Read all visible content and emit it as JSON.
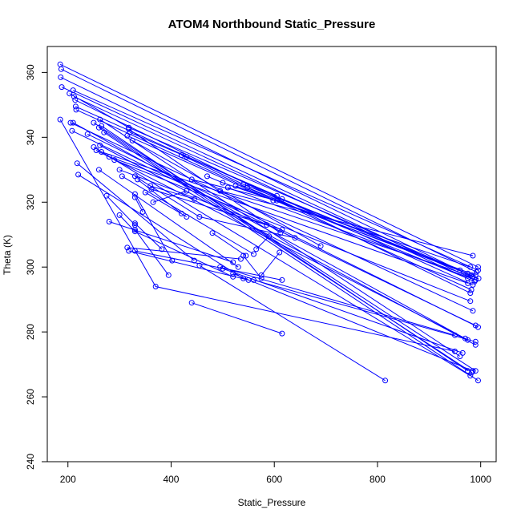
{
  "chart_data": {
    "type": "line",
    "title": "ATOM4 Northbound Static_Pressure",
    "xlabel": "Static_Pressure",
    "ylabel": "Theta (K)",
    "xlim": [
      160,
      1030
    ],
    "ylim": [
      240,
      368
    ],
    "xticks": [
      200,
      400,
      600,
      800,
      1000
    ],
    "yticks": [
      240,
      260,
      280,
      300,
      320,
      340,
      360
    ],
    "grid": false,
    "markers": "open-circle",
    "color": "#0000ff",
    "series": [
      {
        "x": [
          185,
          995
        ],
        "y": [
          362.5,
          300.0
        ]
      },
      {
        "x": [
          187,
          992
        ],
        "y": [
          361.0,
          298.5
        ]
      },
      {
        "x": [
          186,
          985
        ],
        "y": [
          358.5,
          297.0
        ]
      },
      {
        "x": [
          188,
          990
        ],
        "y": [
          355.5,
          296.0
        ]
      },
      {
        "x": [
          210,
          995
        ],
        "y": [
          354.5,
          299.0
        ]
      },
      {
        "x": [
          212,
          988
        ],
        "y": [
          352.5,
          295.5
        ]
      },
      {
        "x": [
          214,
          980
        ],
        "y": [
          351.5,
          292.0
        ]
      },
      {
        "x": [
          215,
          985
        ],
        "y": [
          349.5,
          294.5
        ]
      },
      {
        "x": [
          216,
          982
        ],
        "y": [
          348.5,
          293.0
        ]
      },
      {
        "x": [
          203,
          318,
          996
        ],
        "y": [
          353.5,
          343.0,
          296.5
        ]
      },
      {
        "x": [
          185,
          370,
          950
        ],
        "y": [
          345.5,
          294.0,
          274.0
        ]
      },
      {
        "x": [
          205,
          985
        ],
        "y": [
          344.5,
          286.5
        ]
      },
      {
        "x": [
          208,
          990
        ],
        "y": [
          342.0,
          282.0
        ]
      },
      {
        "x": [
          210,
          975
        ],
        "y": [
          344.5,
          277.5
        ]
      },
      {
        "x": [
          238,
          995
        ],
        "y": [
          341.0,
          281.5
        ]
      },
      {
        "x": [
          262,
          960
        ],
        "y": [
          345.5,
          272.5
        ]
      },
      {
        "x": [
          265,
          975
        ],
        "y": [
          343.5,
          268.0
        ]
      },
      {
        "x": [
          250,
          990
        ],
        "y": [
          344.5,
          268.0
        ]
      },
      {
        "x": [
          260,
          983
        ],
        "y": [
          343.0,
          267.5
        ]
      },
      {
        "x": [
          270,
          995
        ],
        "y": [
          341.5,
          265.0
        ]
      },
      {
        "x": [
          250,
          980
        ],
        "y": [
          337.0,
          266.5
        ]
      },
      {
        "x": [
          255,
          970
        ],
        "y": [
          336.0,
          278.0
        ]
      },
      {
        "x": [
          262,
          990
        ],
        "y": [
          337.5,
          276.0
        ]
      },
      {
        "x": [
          265,
          985
        ],
        "y": [
          335.5,
          297.0
        ]
      },
      {
        "x": [
          280,
          975
        ],
        "y": [
          334.0,
          295.0
        ]
      },
      {
        "x": [
          290,
          980
        ],
        "y": [
          333.0,
          289.5
        ]
      },
      {
        "x": [
          318,
          612
        ],
        "y": [
          342.5,
          310.5
        ]
      },
      {
        "x": [
          320,
          605
        ],
        "y": [
          341.5,
          322.0
        ]
      },
      {
        "x": [
          315,
          598
        ],
        "y": [
          340.5,
          320.5
        ]
      },
      {
        "x": [
          325,
          690
        ],
        "y": [
          339.0,
          306.5
        ]
      },
      {
        "x": [
          300,
          585
        ],
        "y": [
          330.0,
          313.0
        ]
      },
      {
        "x": [
          305,
          560
        ],
        "y": [
          328.0,
          304.0
        ]
      },
      {
        "x": [
          218,
          445
        ],
        "y": [
          332.0,
          302.0
        ]
      },
      {
        "x": [
          220,
          540
        ],
        "y": [
          328.5,
          296.5
        ]
      },
      {
        "x": [
          260,
          530
        ],
        "y": [
          330.0,
          300.0
        ]
      },
      {
        "x": [
          275,
          330
        ],
        "y": [
          322.0,
          313.0
        ]
      },
      {
        "x": [
          280,
          520
        ],
        "y": [
          314.0,
          301.5
        ]
      },
      {
        "x": [
          300,
          330,
          520
        ],
        "y": [
          316.0,
          311.0,
          297.0
        ]
      },
      {
        "x": [
          315,
          535
        ],
        "y": [
          306.0,
          302.5
        ]
      },
      {
        "x": [
          318,
          550
        ],
        "y": [
          305.0,
          296.0
        ]
      },
      {
        "x": [
          330,
          395
        ],
        "y": [
          311.5,
          297.5
        ]
      },
      {
        "x": [
          330,
          382
        ],
        "y": [
          313.5,
          305.5
        ]
      },
      {
        "x": [
          330,
          345
        ],
        "y": [
          321.5,
          317.0
        ]
      },
      {
        "x": [
          330,
          402
        ],
        "y": [
          322.5,
          302.0
        ]
      },
      {
        "x": [
          330,
          455,
          640
        ],
        "y": [
          328.0,
          315.5,
          309.0
        ]
      },
      {
        "x": [
          335,
          420
        ],
        "y": [
          327.0,
          316.5
        ]
      },
      {
        "x": [
          350,
          430
        ],
        "y": [
          323.0,
          315.5
        ]
      },
      {
        "x": [
          360,
          445
        ],
        "y": [
          325.0,
          321.0
        ]
      },
      {
        "x": [
          362,
          615
        ],
        "y": [
          324.0,
          311.5
        ]
      },
      {
        "x": [
          365,
          430
        ],
        "y": [
          320.0,
          323.5
        ]
      },
      {
        "x": [
          420,
          540,
          960
        ],
        "y": [
          334.5,
          325.5,
          299.0
        ]
      },
      {
        "x": [
          430,
          615,
          975
        ],
        "y": [
          334.0,
          321.0,
          298.0
        ]
      },
      {
        "x": [
          440,
          605,
          982
        ],
        "y": [
          327.0,
          320.5,
          297.5
        ]
      },
      {
        "x": [
          470,
          500,
          980
        ],
        "y": [
          328.0,
          326.0,
          300.0
        ]
      },
      {
        "x": [
          495,
          985
        ],
        "y": [
          323.5,
          303.5
        ]
      },
      {
        "x": [
          510,
          990
        ],
        "y": [
          324.5,
          296.0
        ]
      },
      {
        "x": [
          525,
          990
        ],
        "y": [
          325.0,
          297.5
        ]
      },
      {
        "x": [
          548,
          975
        ],
        "y": [
          324.5,
          296.5
        ]
      },
      {
        "x": [
          480,
          545
        ],
        "y": [
          310.5,
          303.5
        ]
      },
      {
        "x": [
          540,
          575
        ],
        "y": [
          303.5,
          296.5
        ]
      },
      {
        "x": [
          565,
          590
        ],
        "y": [
          305.5,
          309.5
        ]
      },
      {
        "x": [
          575,
          610
        ],
        "y": [
          297.5,
          304.5
        ]
      },
      {
        "x": [
          440,
          615
        ],
        "y": [
          289.0,
          279.5
        ]
      },
      {
        "x": [
          330,
          615
        ],
        "y": [
          305.0,
          296.0
        ]
      },
      {
        "x": [
          455,
          815
        ],
        "y": [
          300.5,
          265.0
        ]
      },
      {
        "x": [
          560,
          990
        ],
        "y": [
          296.0,
          277.0
        ]
      },
      {
        "x": [
          520,
          985
        ],
        "y": [
          298.0,
          268.0
        ]
      },
      {
        "x": [
          500,
          965
        ],
        "y": [
          299.5,
          273.5
        ]
      },
      {
        "x": [
          495,
          950
        ],
        "y": [
          300.0,
          279.0
        ]
      }
    ]
  }
}
